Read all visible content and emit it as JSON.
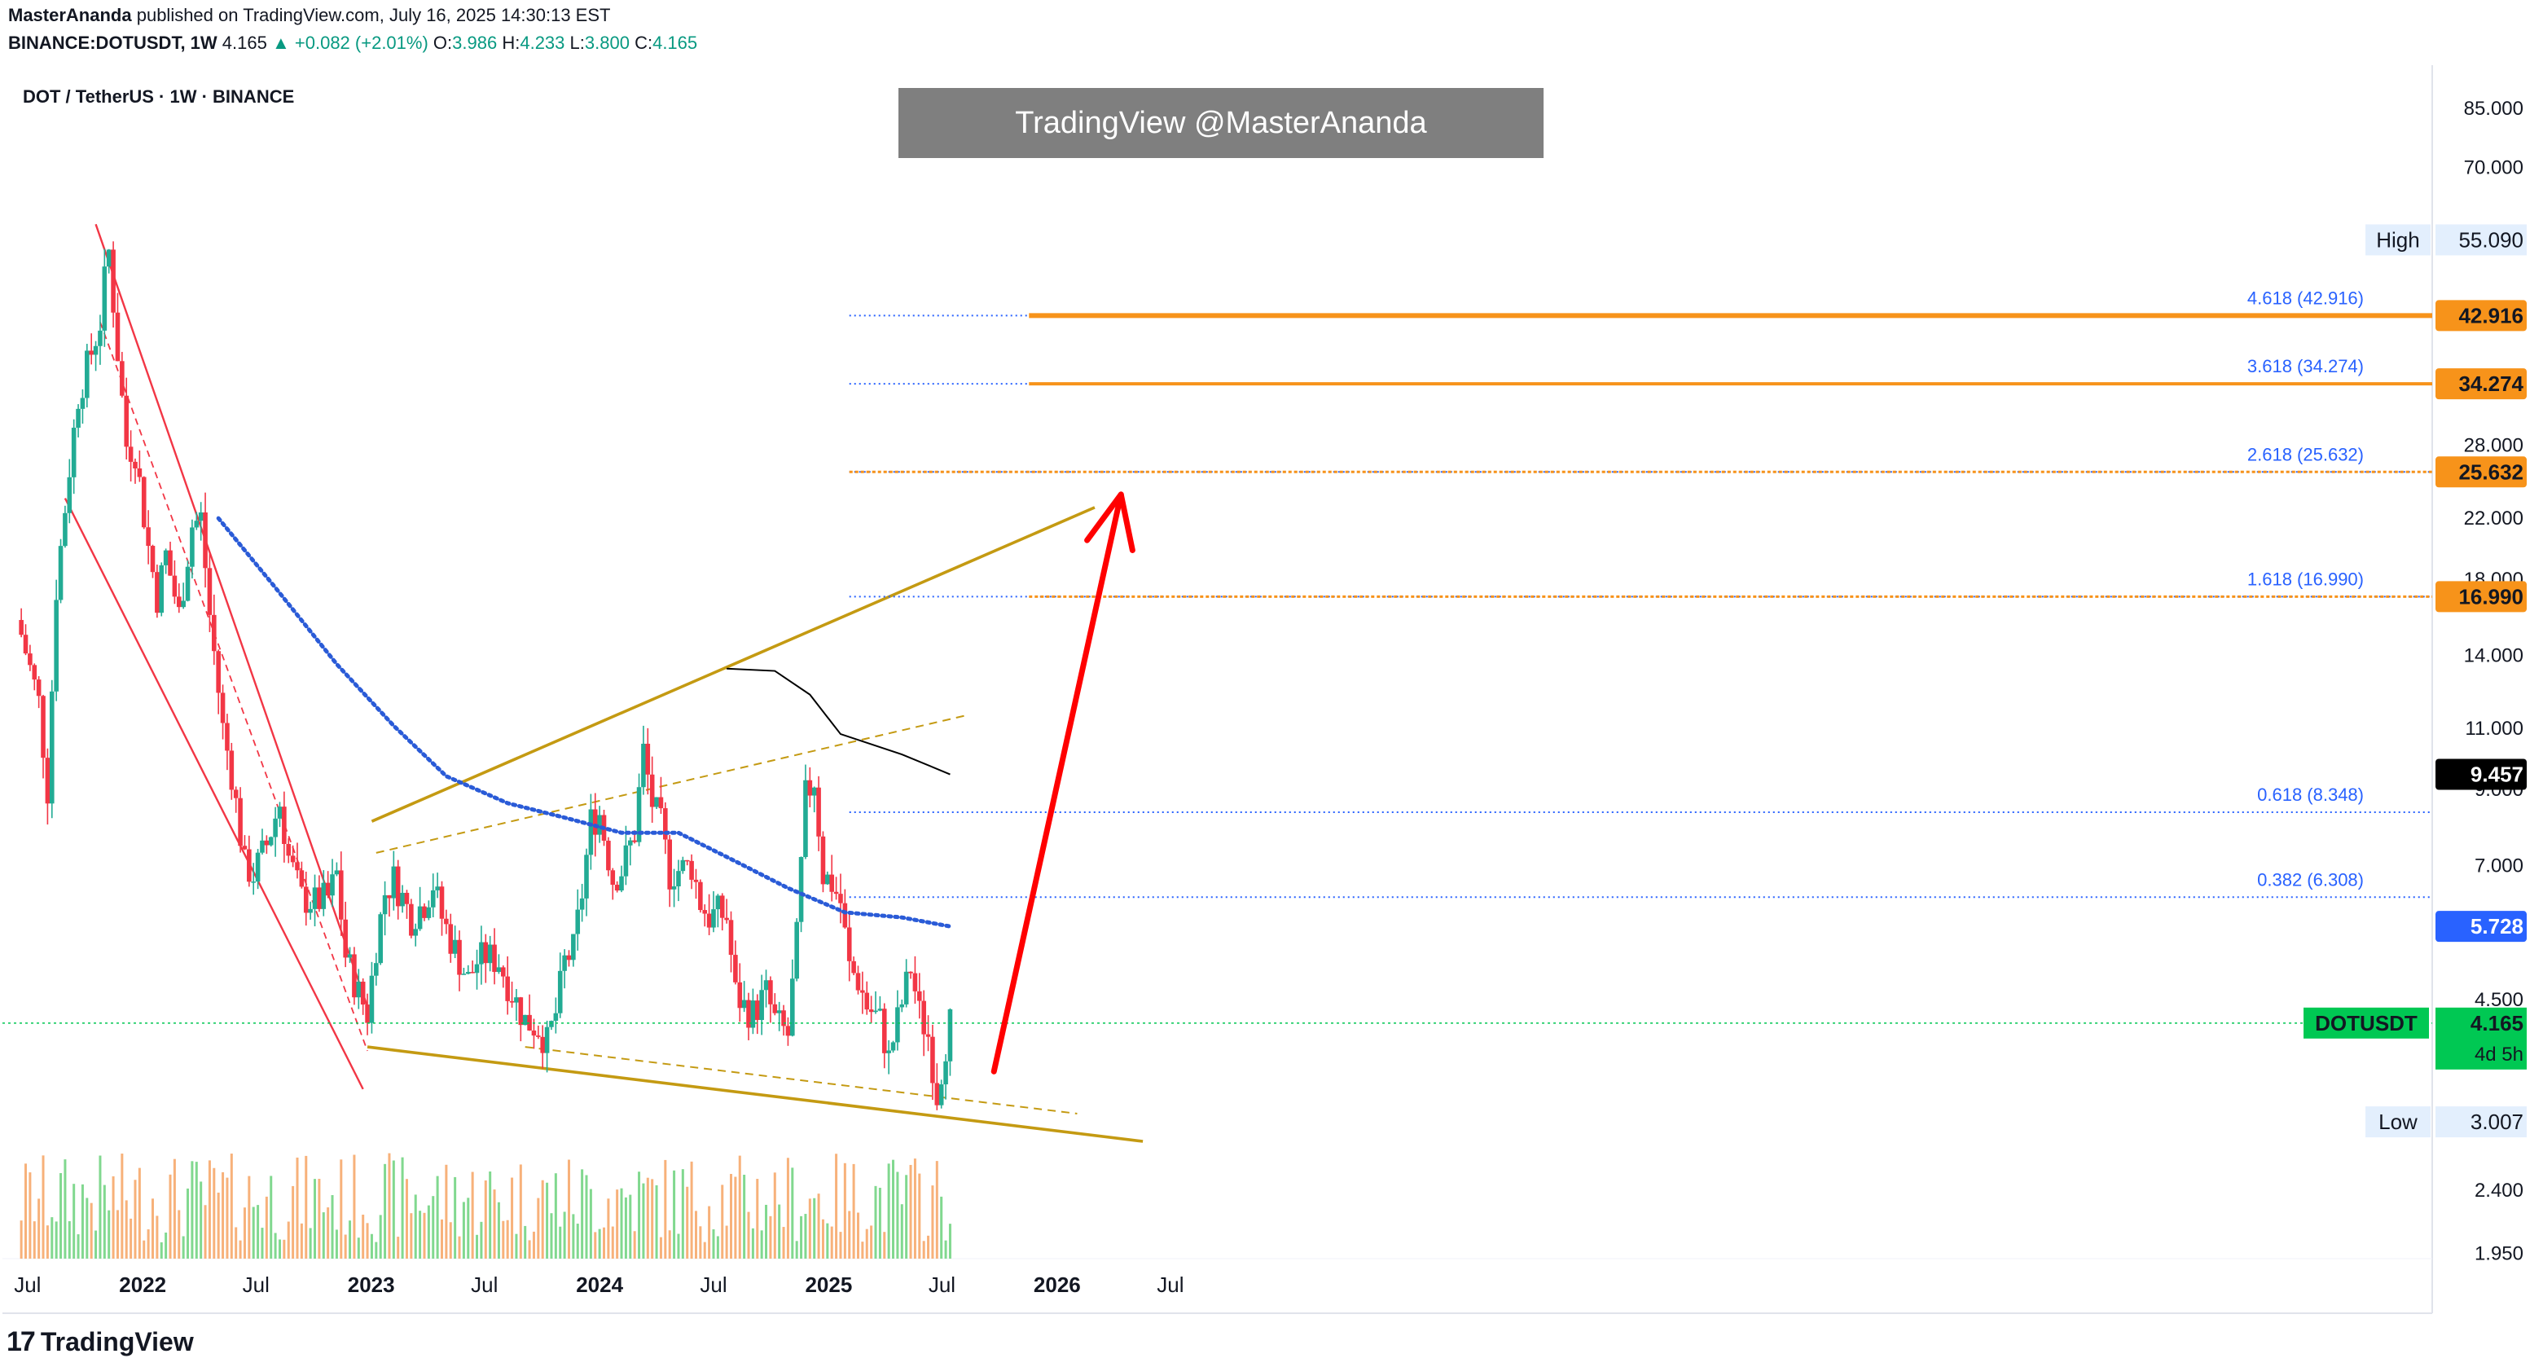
{
  "header": {
    "author": "MasterAnanda",
    "published": "published on TradingView.com, July 16, 2025 14:30:13 EST",
    "ticker": "BINANCE:DOTUSDT, 1W",
    "last": "4.165",
    "arrow": "▲",
    "change": "+0.082 (+2.01%)",
    "o_label": "O:",
    "o": "3.986",
    "h_label": "H:",
    "h": "4.233",
    "l_label": "L:",
    "l": "3.800",
    "c_label": "C:",
    "c": "4.165"
  },
  "symbol_line": "DOT / TetherUS · 1W · BINANCE",
  "watermark": "TradingView @MasterAnanda",
  "logo": {
    "mark": "17",
    "text": "TradingView"
  },
  "colors": {
    "up": "#22ab94",
    "down": "#f23645",
    "up_wick": "#089981",
    "volume_up": "#81d88f",
    "volume_down": "#f7b17a",
    "channel": "#f23645",
    "triangle": "#c49a12",
    "ma_dotted": "#2a5bd7",
    "ma_black": "#000000",
    "fib": "#2962ff",
    "target": "#f7931a",
    "arrow": "#ff0000",
    "current": "#00c853"
  },
  "chart_data": {
    "type": "candlestick",
    "title": "DOT / TetherUS · 1W · BINANCE",
    "y_scale": "log",
    "ylim": [
      1.6,
      98
    ],
    "x_ticks": [
      "Jul",
      "2022",
      "Jul",
      "2023",
      "Jul",
      "2024",
      "Jul",
      "2025",
      "Jul",
      "2026",
      "Jul"
    ],
    "y_ticks": [
      "85.000",
      "70.000",
      "55.090",
      "42.916",
      "34.274",
      "28.000",
      "25.632",
      "22.000",
      "18.000",
      "16.990",
      "14.000",
      "11.000",
      "9.457",
      "9.000",
      "7.000",
      "5.728",
      "4.500",
      "4.165",
      "3.007",
      "2.400",
      "1.950"
    ],
    "price_path": [
      [
        "2021-06-21",
        15.0
      ],
      [
        "2021-07-19",
        12.0
      ],
      [
        "2021-08-02",
        9.0
      ],
      [
        "2021-08-16",
        17.5
      ],
      [
        "2021-09-06",
        26.0
      ],
      [
        "2021-09-20",
        33.0
      ],
      [
        "2021-10-11",
        38.0
      ],
      [
        "2021-10-25",
        42.0
      ],
      [
        "2021-11-01",
        48.0
      ],
      [
        "2021-11-08",
        53.0
      ],
      [
        "2021-11-22",
        38.0
      ],
      [
        "2021-12-06",
        28.0
      ],
      [
        "2021-12-20",
        27.5
      ],
      [
        "2022-01-10",
        20.0
      ],
      [
        "2022-01-24",
        17.0
      ],
      [
        "2022-02-07",
        19.5
      ],
      [
        "2022-02-28",
        16.0
      ],
      [
        "2022-03-21",
        21.5
      ],
      [
        "2022-04-04",
        22.0
      ],
      [
        "2022-04-18",
        16.0
      ],
      [
        "2022-05-09",
        11.0
      ],
      [
        "2022-05-23",
        9.5
      ],
      [
        "2022-06-13",
        7.0
      ],
      [
        "2022-06-27",
        6.8
      ],
      [
        "2022-07-18",
        7.5
      ],
      [
        "2022-08-08",
        8.6
      ],
      [
        "2022-08-22",
        7.2
      ],
      [
        "2022-09-12",
        6.3
      ],
      [
        "2022-10-03",
        6.2
      ],
      [
        "2022-10-24",
        6.3
      ],
      [
        "2022-11-07",
        6.8
      ],
      [
        "2022-11-21",
        5.2
      ],
      [
        "2022-12-12",
        4.6
      ],
      [
        "2022-12-26",
        4.3
      ],
      [
        "2023-01-09",
        5.4
      ],
      [
        "2023-01-23",
        6.4
      ],
      [
        "2023-02-06",
        6.7
      ],
      [
        "2023-02-20",
        6.3
      ],
      [
        "2023-03-06",
        5.9
      ],
      [
        "2023-03-27",
        6.2
      ],
      [
        "2023-04-10",
        6.6
      ],
      [
        "2023-04-24",
        5.9
      ],
      [
        "2023-05-15",
        5.3
      ],
      [
        "2023-06-05",
        4.8
      ],
      [
        "2023-06-19",
        5.1
      ],
      [
        "2023-07-03",
        5.2
      ],
      [
        "2023-07-24",
        5.1
      ],
      [
        "2023-08-14",
        4.6
      ],
      [
        "2023-09-04",
        4.2
      ],
      [
        "2023-09-25",
        4.1
      ],
      [
        "2023-10-09",
        3.9
      ],
      [
        "2023-10-23",
        4.3
      ],
      [
        "2023-11-06",
        5.1
      ],
      [
        "2023-11-20",
        5.3
      ],
      [
        "2023-12-04",
        6.4
      ],
      [
        "2023-12-18",
        8.1
      ],
      [
        "2024-01-01",
        8.3
      ],
      [
        "2024-01-22",
        6.7
      ],
      [
        "2024-02-05",
        6.9
      ],
      [
        "2024-02-26",
        7.8
      ],
      [
        "2024-03-11",
        10.2
      ],
      [
        "2024-03-25",
        8.6
      ],
      [
        "2024-04-08",
        8.0
      ],
      [
        "2024-04-22",
        6.8
      ],
      [
        "2024-05-06",
        6.9
      ],
      [
        "2024-05-27",
        7.0
      ],
      [
        "2024-06-10",
        6.2
      ],
      [
        "2024-06-24",
        5.9
      ],
      [
        "2024-07-08",
        6.0
      ],
      [
        "2024-07-22",
        5.9
      ],
      [
        "2024-08-05",
        4.6
      ],
      [
        "2024-08-19",
        4.4
      ],
      [
        "2024-09-02",
        4.3
      ],
      [
        "2024-09-23",
        4.6
      ],
      [
        "2024-10-07",
        4.2
      ],
      [
        "2024-10-28",
        4.0
      ],
      [
        "2024-11-11",
        5.5
      ],
      [
        "2024-11-25",
        8.8
      ],
      [
        "2024-12-09",
        9.3
      ],
      [
        "2024-12-23",
        6.8
      ],
      [
        "2025-01-06",
        6.6
      ],
      [
        "2025-01-20",
        6.2
      ],
      [
        "2025-02-03",
        5.0
      ],
      [
        "2025-02-17",
        4.8
      ],
      [
        "2025-03-03",
        4.4
      ],
      [
        "2025-03-24",
        4.2
      ],
      [
        "2025-04-07",
        3.7
      ],
      [
        "2025-04-21",
        4.2
      ],
      [
        "2025-05-12",
        5.0
      ],
      [
        "2025-05-26",
        4.3
      ],
      [
        "2025-06-09",
        4.0
      ],
      [
        "2025-06-23",
        3.3
      ],
      [
        "2025-07-07",
        3.9
      ],
      [
        "2025-07-14",
        4.165
      ]
    ],
    "series": [
      {
        "name": "DOTUSDT",
        "last": 4.165,
        "countdown": "4d 5h"
      },
      {
        "values": [
          [
            "2022-05-02",
            22.0
          ],
          [
            "2022-08-01",
            17.5
          ],
          [
            "2022-11-07",
            13.6
          ],
          [
            "2023-02-06",
            11.1
          ],
          [
            "2023-05-01",
            9.4
          ],
          [
            "2023-08-07",
            8.6
          ],
          [
            "2023-11-06",
            8.2
          ],
          [
            "2024-02-05",
            7.8
          ],
          [
            "2024-05-06",
            7.8
          ],
          [
            "2024-08-05",
            7.1
          ],
          [
            "2024-10-28",
            6.5
          ],
          [
            "2025-01-27",
            6.0
          ],
          [
            "2025-04-28",
            5.9
          ],
          [
            "2025-07-14",
            5.728
          ]
        ],
        "last": 5.728
      },
      {
        "values": [
          [
            "2024-07-22",
            13.4
          ],
          [
            "2024-10-07",
            13.3
          ],
          [
            "2024-12-02",
            12.3
          ],
          [
            "2025-01-20",
            10.8
          ],
          [
            "2025-04-28",
            10.1
          ],
          [
            "2025-07-14",
            9.457
          ]
        ],
        "last": 9.457
      }
    ],
    "levels": {
      "high": {
        "label": "High",
        "value": "55.090"
      },
      "low": {
        "label": "Low",
        "value": "3.007"
      }
    },
    "fib_extensions": [
      {
        "label": "4.618 (42.916)",
        "value": 42.916,
        "tag": "42.916"
      },
      {
        "label": "3.618 (34.274)",
        "value": 34.274,
        "tag": "34.274"
      },
      {
        "label": "2.618 (25.632)",
        "value": 25.632,
        "tag": "25.632"
      },
      {
        "label": "1.618 (16.990)",
        "value": 16.99,
        "tag": "16.990"
      },
      {
        "label": "0.618 (8.348)",
        "value": 8.348
      },
      {
        "label": "0.382 (6.308)",
        "value": 6.308
      }
    ]
  }
}
